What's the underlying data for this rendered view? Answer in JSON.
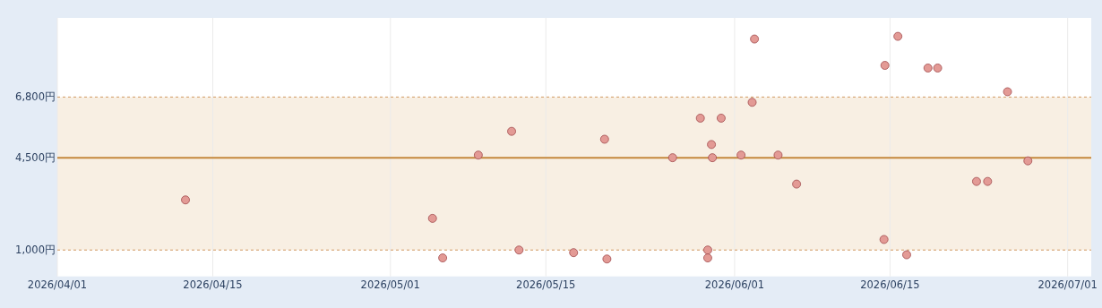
{
  "chart_data": {
    "type": "scatter",
    "x": [
      "2026-04-12T13:00",
      "2026-05-04T19:00",
      "2026-05-05T17:00",
      "2026-05-08T22:00",
      "2026-05-11T22:00",
      "2026-05-12T14:00",
      "2026-05-17T12:00",
      "2026-05-20T07:00",
      "2026-05-20T12:00",
      "2026-05-26T10:00",
      "2026-05-28T22:00",
      "2026-05-29T14:00",
      "2026-05-29T14:00",
      "2026-05-29T22:00",
      "2026-05-30T00:00",
      "2026-05-30T19:00",
      "2026-06-01T14:00",
      "2026-06-02T14:00",
      "2026-06-02T19:00",
      "2026-06-04T22:00",
      "2026-06-06T14:00",
      "2026-06-14T11:00",
      "2026-06-14T13:00",
      "2026-06-15T17:00",
      "2026-06-16T12:00",
      "2026-06-18T10:00",
      "2026-06-19T07:00",
      "2026-06-22T19:00",
      "2026-06-23T19:00",
      "2026-06-25T14:00",
      "2026-06-27T10:00"
    ],
    "series": [
      {
        "color": "#e39a95",
        "values": [
          2900,
          2200,
          700,
          4600,
          5500,
          1000,
          900,
          5200,
          660,
          4500,
          6000,
          1000,
          700,
          5000,
          4500,
          6000,
          4600,
          6600,
          9000,
          4600,
          3500,
          1400,
          8000,
          9100,
          820,
          7900,
          7900,
          3600,
          3600,
          7000,
          4380
        ]
      }
    ],
    "xlim": [
      "2026-04-01",
      "2026-07-03T03:00"
    ],
    "xticks": [
      {
        "value": "2026-04-01",
        "label": "2026/04/01"
      },
      {
        "value": "2026-04-15",
        "label": "2026/04/15"
      },
      {
        "value": "2026-05-01",
        "label": "2026/05/01"
      },
      {
        "value": "2026-05-15",
        "label": "2026/05/15"
      },
      {
        "value": "2026-06-01",
        "label": "2026/06/01"
      },
      {
        "value": "2026-06-15",
        "label": "2026/06/15"
      },
      {
        "value": "2026-07-01",
        "label": "2026/07/01"
      }
    ],
    "ylim": [
      0,
      9800
    ],
    "yticks": [
      {
        "value": 1000,
        "label": "1,000円"
      },
      {
        "value": 4500,
        "label": "4,500円"
      },
      {
        "value": 6800,
        "label": "6,800円"
      }
    ],
    "ref_lines": [
      {
        "axis": "y",
        "value": 1000,
        "color": "#d19a62",
        "line_style": "dashed"
      },
      {
        "axis": "y",
        "value": 4500,
        "color": "#c4883c",
        "line_style": "solid"
      },
      {
        "axis": "y",
        "value": 6800,
        "color": "#d19a62",
        "line_style": "dashed"
      }
    ],
    "bands": [
      {
        "axis": "y",
        "from": 1000,
        "to": 6800,
        "color": "#f8efe3"
      }
    ],
    "grid": "x",
    "marker": "circle"
  }
}
